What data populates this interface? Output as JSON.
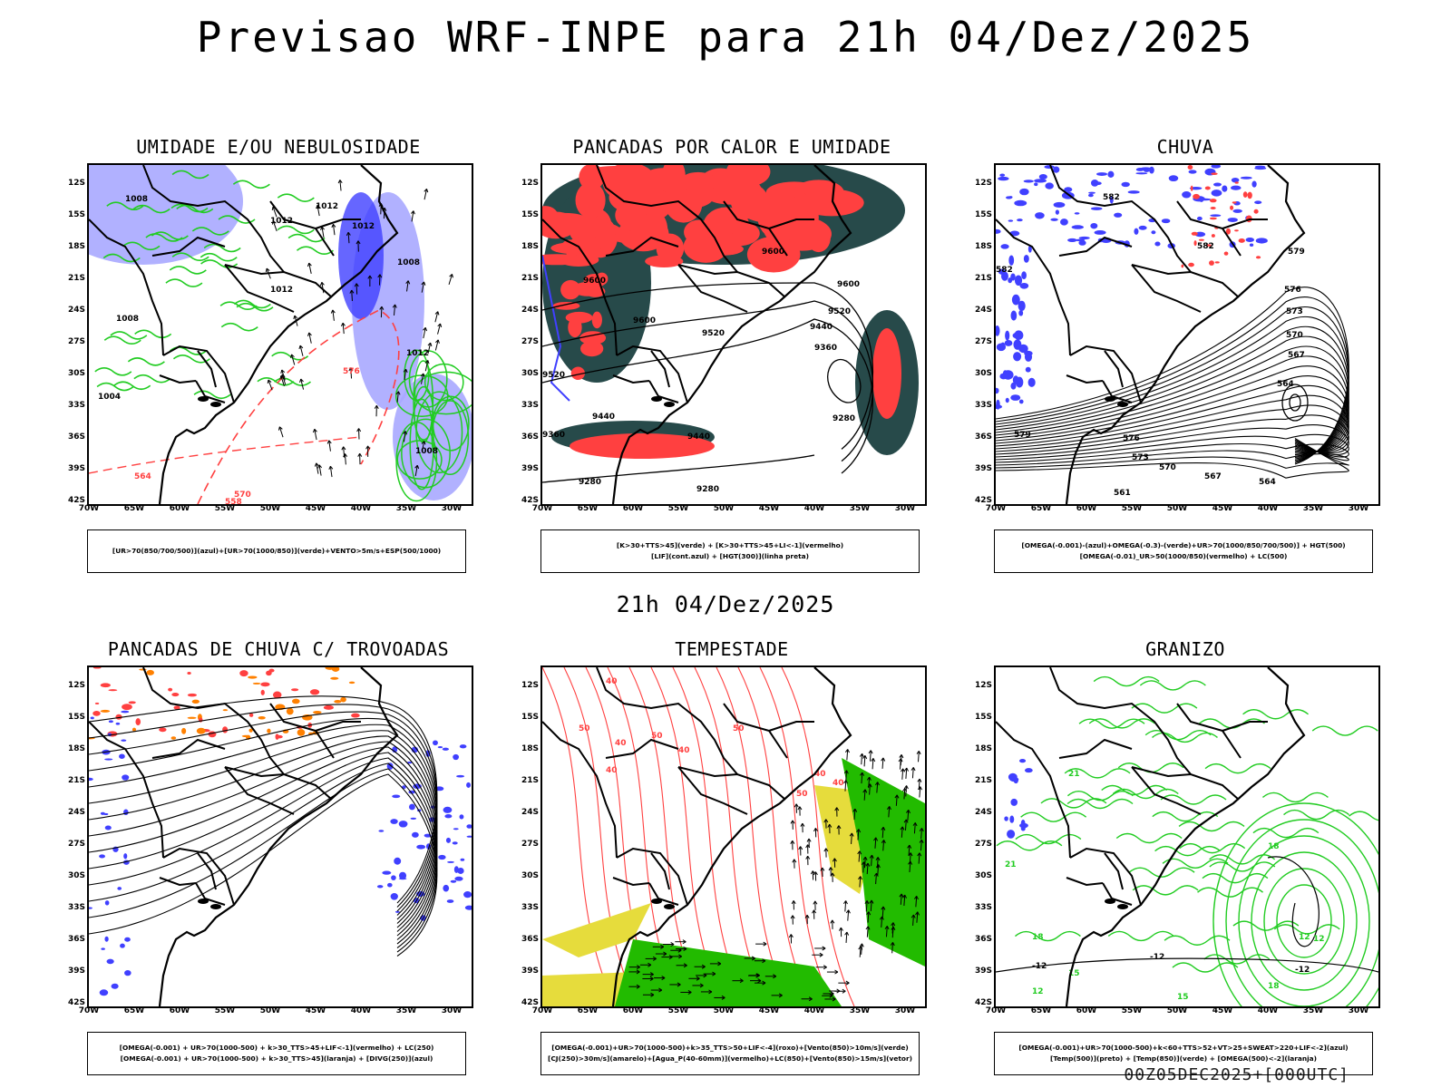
{
  "header": {
    "title": "Previsao WRF-INPE  para 21h 04/Dez/2025",
    "subtitle": "21h 04/Dez/2025",
    "footer": "00Z05DEC2025+[000UTC]"
  },
  "axes": {
    "latitudes": [
      "12S",
      "15S",
      "18S",
      "21S",
      "24S",
      "27S",
      "30S",
      "33S",
      "36S",
      "39S",
      "42S"
    ],
    "longitudes": [
      "70W",
      "65W",
      "60W",
      "55W",
      "50W",
      "45W",
      "40W",
      "35W",
      "30W"
    ]
  },
  "colors": {
    "blue": "#4040ff",
    "light_blue": "#a8a8ff",
    "green": "#22cc22",
    "red": "#ff4040",
    "dark_teal": "#274a4a",
    "orange": "#ff8000",
    "yellow": "#e6dc3c",
    "black": "#000000"
  },
  "panels": [
    {
      "id": "umidade",
      "title": "UMIDADE E/OU NEBULOSIDADE",
      "legend": [
        "[UR>70(850/700/500)](azul)+[UR>70(1000/850)](verde)+VENTO>5m/s+ESP(500/1000)"
      ],
      "labels": [
        "1008",
        "1012",
        "1012",
        "1012",
        "1012",
        "1008",
        "1008",
        "1012",
        "1004",
        "1008",
        "576",
        "570",
        "564",
        "558"
      ]
    },
    {
      "id": "pancadas-calor",
      "title": "PANCADAS POR CALOR E UMIDADE",
      "legend": [
        "[K>30+TTS>45](verde) + [K>30+TTS>45+LI<-1](vermelho)",
        "[LIF](cont.azul) + [HGT(300)](linha preta)"
      ],
      "labels": [
        "9600",
        "9600",
        "9600",
        "9600",
        "9520",
        "9520",
        "9440",
        "9360",
        "9280",
        "9520",
        "9440",
        "9440",
        "9360",
        "9280",
        "9280"
      ]
    },
    {
      "id": "chuva",
      "title": "CHUVA",
      "legend": [
        "[OMEGA(-0.001)-(azul)+OMEGA(-0.3)-(verde)+UR>70(1000/850/700/500)] + HGT(500)",
        "[OMEGA(-0.01)_UR>50(1000/850)(vermelho) + LC(500)"
      ],
      "labels": [
        "582",
        "582",
        "579",
        "576",
        "573",
        "570",
        "567",
        "564",
        "582",
        "579",
        "576",
        "573",
        "570",
        "567",
        "564",
        "561"
      ]
    },
    {
      "id": "pancadas-trovoadas",
      "title": "PANCADAS DE CHUVA C/ TROVOADAS",
      "legend": [
        "[OMEGA(-0.001) + UR>70(1000-500) + k>30_TTS>45+LIF<-1](vermelho) + LC(250)",
        "[OMEGA(-0.001) + UR>70(1000-500) + k>30_TTS>45](laranja) + [DIVG(250)](azul)"
      ],
      "labels": []
    },
    {
      "id": "tempestade",
      "title": "TEMPESTADE",
      "legend": [
        "[OMEGA(-0.001)+UR>70(1000-500)+k>35_TTS>50+LIF<-4](roxo)+[Vento(850)>10m/s](verde)",
        "[CJ(250)>30m/s](amarelo)+[Agua_P(40-60mm)](vermelho)+LC(850)+[Vento(850)>15m/s](vetor)"
      ],
      "labels": [
        "40",
        "50",
        "40",
        "50",
        "40",
        "40",
        "50",
        "40",
        "50",
        "40"
      ]
    },
    {
      "id": "granizo",
      "title": "GRANIZO",
      "legend": [
        "[OMEGA(-0.001)+UR>70(1000-500)+k<60+TTS>52+VT>25+SWEAT>220+LIF<-2](azul)",
        "[Temp(500)](preto) + [Temp(850)](verde) + [OMEGA(500)<-2](laranja)"
      ],
      "labels": [
        "-12",
        "-12",
        "-12",
        "12",
        "15",
        "18",
        "21",
        "12",
        "15",
        "18",
        "12",
        "18",
        "21"
      ]
    }
  ]
}
